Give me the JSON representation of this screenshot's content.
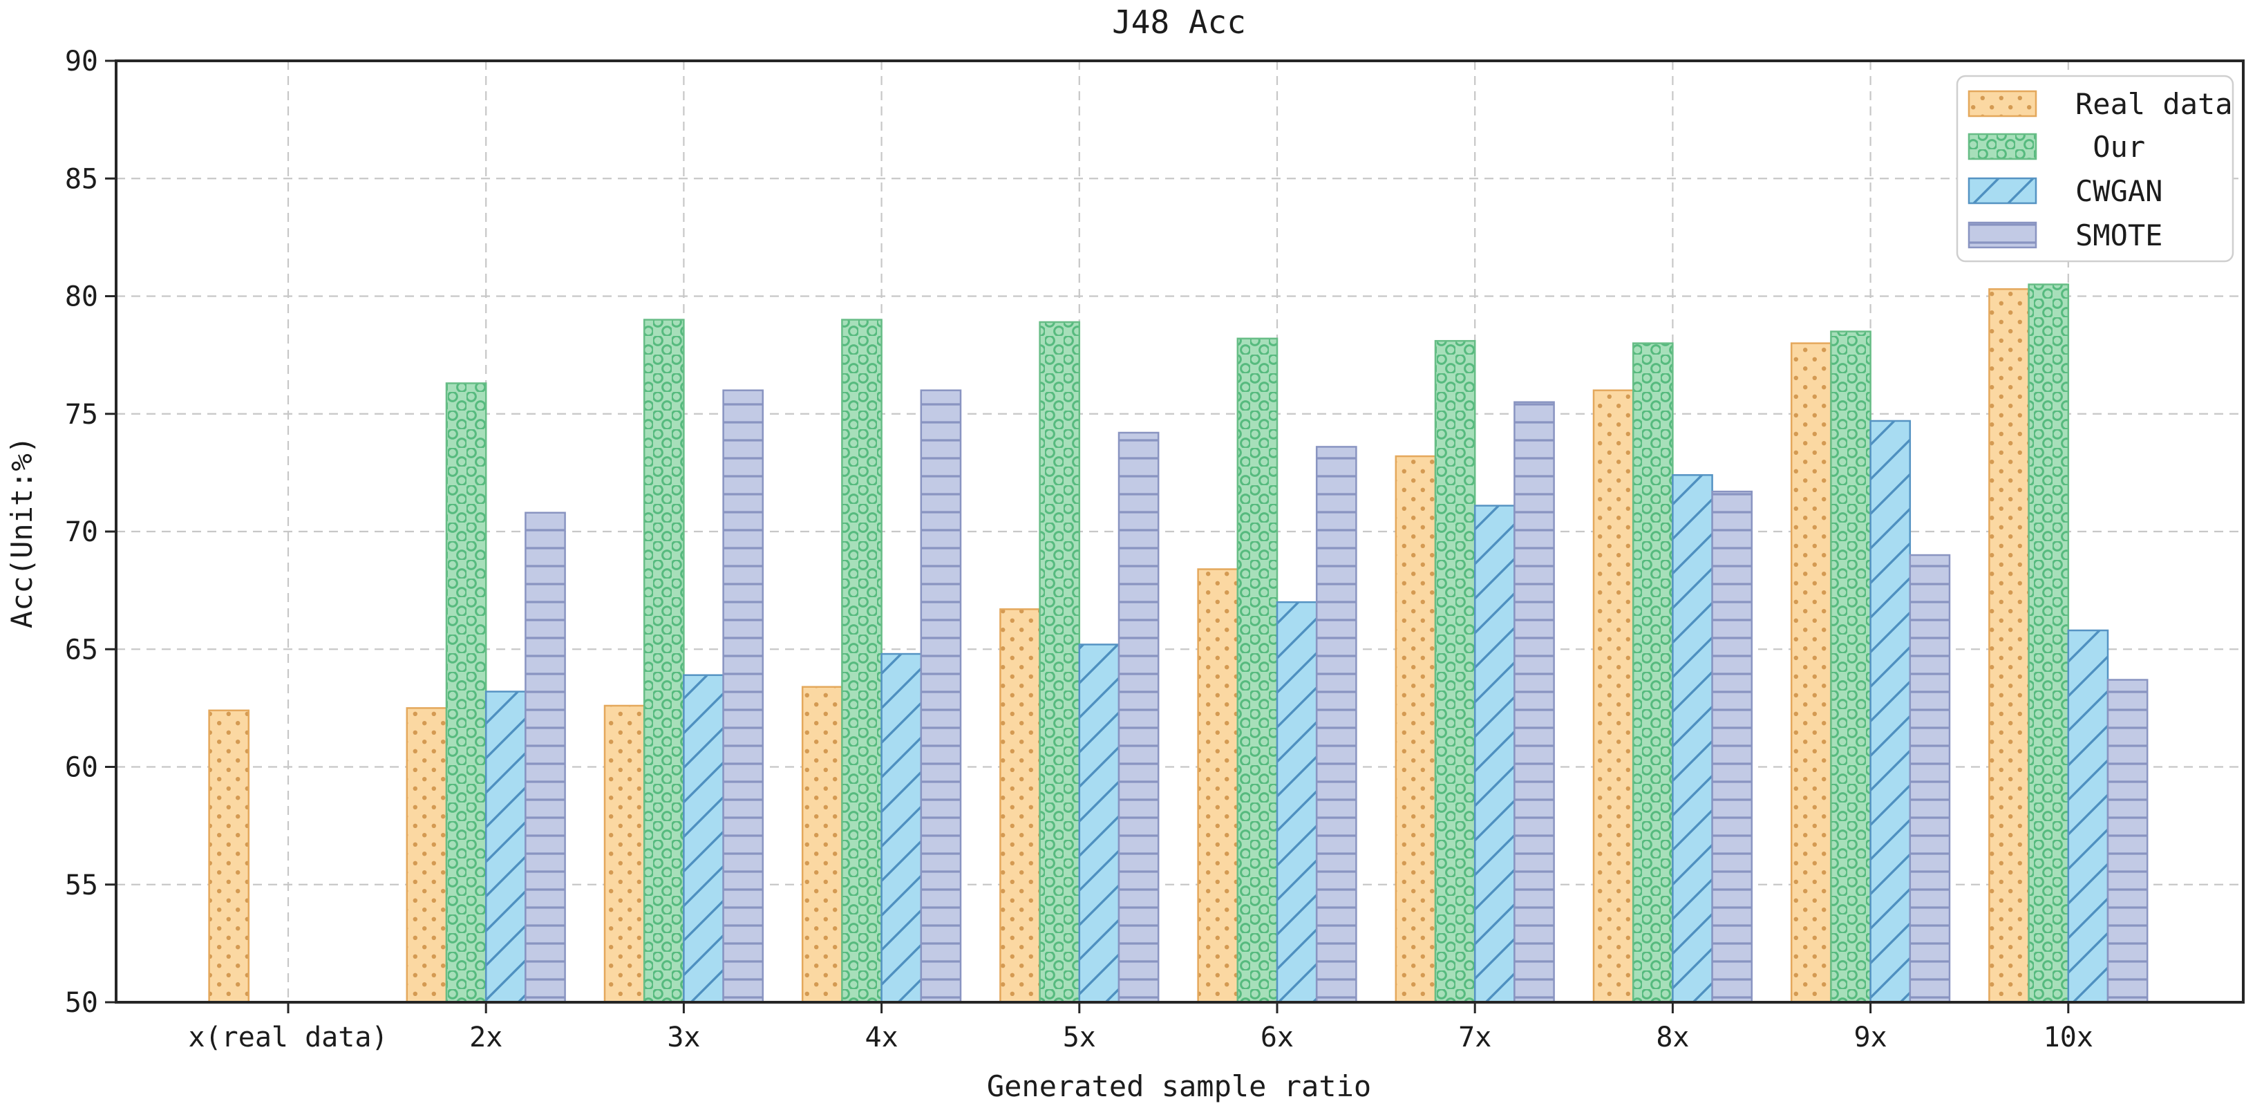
{
  "chart_data": {
    "type": "bar",
    "title": "J48 Acc",
    "xlabel": "Generated sample ratio",
    "ylabel": "Acc(Unit:%)",
    "ylim": [
      50,
      90
    ],
    "yticks": [
      50,
      55,
      60,
      65,
      70,
      75,
      80,
      85,
      90
    ],
    "grid": true,
    "grid_style": "dashed",
    "legend_position": "upper right",
    "categories": [
      "x(real data)",
      "2x",
      "3x",
      "4x",
      "5x",
      "6x",
      "7x",
      "8x",
      "9x",
      "10x"
    ],
    "series": [
      {
        "name": "Real data",
        "hatch": "dot",
        "fill": "#FBD8A2",
        "edge": "#E4A85C",
        "hatch_color": "#D49A52",
        "values": [
          62.4,
          62.5,
          62.6,
          63.4,
          66.7,
          68.4,
          73.2,
          76.0,
          78.0,
          80.3
        ]
      },
      {
        "name": " Our",
        "hatch": "circle",
        "fill": "#A7DFBA",
        "edge": "#67BD86",
        "hatch_color": "#56BA7E",
        "values": [
          null,
          76.3,
          79.0,
          79.0,
          78.9,
          78.2,
          78.1,
          78.0,
          78.5,
          80.5
        ]
      },
      {
        "name": "CWGAN",
        "hatch": "slash",
        "fill": "#A8DCF2",
        "edge": "#5593C3",
        "hatch_color": "#4E90C0",
        "values": [
          null,
          63.2,
          63.9,
          64.8,
          65.2,
          67.0,
          71.1,
          72.4,
          74.7,
          65.8
        ]
      },
      {
        "name": "SMOTE",
        "hatch": "hline",
        "fill": "#C2CAE5",
        "edge": "#8994C1",
        "hatch_color": "#8994C1",
        "values": [
          null,
          70.8,
          76.0,
          76.0,
          74.2,
          73.6,
          75.5,
          71.7,
          69.0,
          63.7
        ]
      }
    ]
  }
}
